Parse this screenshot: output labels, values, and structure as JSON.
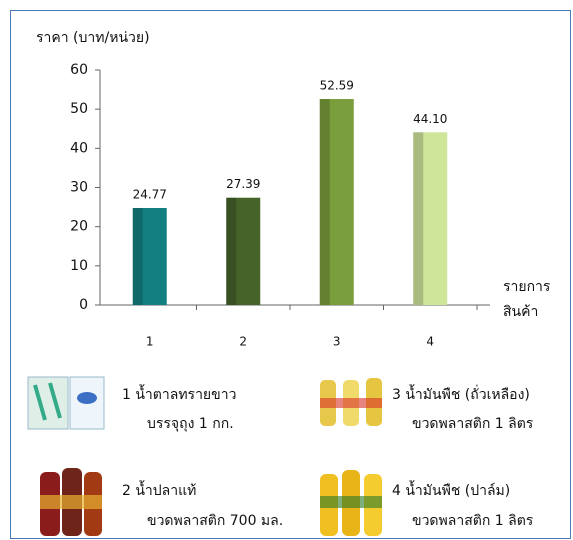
{
  "chart_data": {
    "type": "bar",
    "y_label": "ราคา (บาท/หน่วย)",
    "x_label": [
      "รายการ",
      "สินค้า"
    ],
    "categories": [
      "1",
      "2",
      "3",
      "4"
    ],
    "values": [
      24.77,
      27.39,
      52.59,
      44.1
    ],
    "value_labels": [
      "24.77",
      "27.39",
      "52.59",
      "44.10"
    ],
    "colors": [
      "#147f80",
      "#46632a",
      "#7a9e3c",
      "#cfe59a"
    ],
    "ylim": [
      0,
      60
    ],
    "yticks": [
      0,
      10,
      20,
      30,
      40,
      50,
      60
    ],
    "grid": false
  },
  "products": [
    {
      "lines": [
        "1 น้ำตาลทรายขาว",
        "บรรจุถุง 1 กก."
      ]
    },
    {
      "lines": [
        "3 น้ำมันพืช (ถั่วเหลือง)",
        "ขวดพลาสติก 1 ลิตร"
      ]
    },
    {
      "lines": [
        "2 น้ำปลาแท้",
        "ขวดพลาสติก 700 มล."
      ]
    },
    {
      "lines": [
        "4 น้ำมันพืช (ปาล์ม)",
        "ขวดพลาสติก 1 ลิตร"
      ]
    }
  ]
}
